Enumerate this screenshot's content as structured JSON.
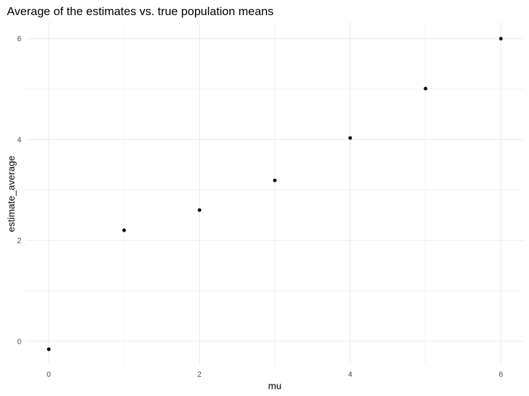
{
  "chart_data": {
    "type": "scatter",
    "title": "Average of the estimates vs. true population means",
    "xlabel": "mu",
    "ylabel": "estimate_average",
    "xlim": [
      -0.3,
      6.3
    ],
    "ylim": [
      -0.46,
      6.33
    ],
    "x_ticks": [
      0,
      2,
      4,
      6
    ],
    "y_ticks": [
      0,
      2,
      4,
      6
    ],
    "x_tick_labels": [
      "0",
      "2",
      "4",
      "6"
    ],
    "y_tick_labels": [
      "0",
      "2",
      "4",
      "6"
    ],
    "grid": true,
    "legend": "none",
    "point_color": "#000000",
    "x": [
      0,
      1,
      2,
      3,
      4,
      5,
      6
    ],
    "y": [
      -0.16,
      2.2,
      2.6,
      3.19,
      4.03,
      5.01,
      6.0
    ]
  }
}
